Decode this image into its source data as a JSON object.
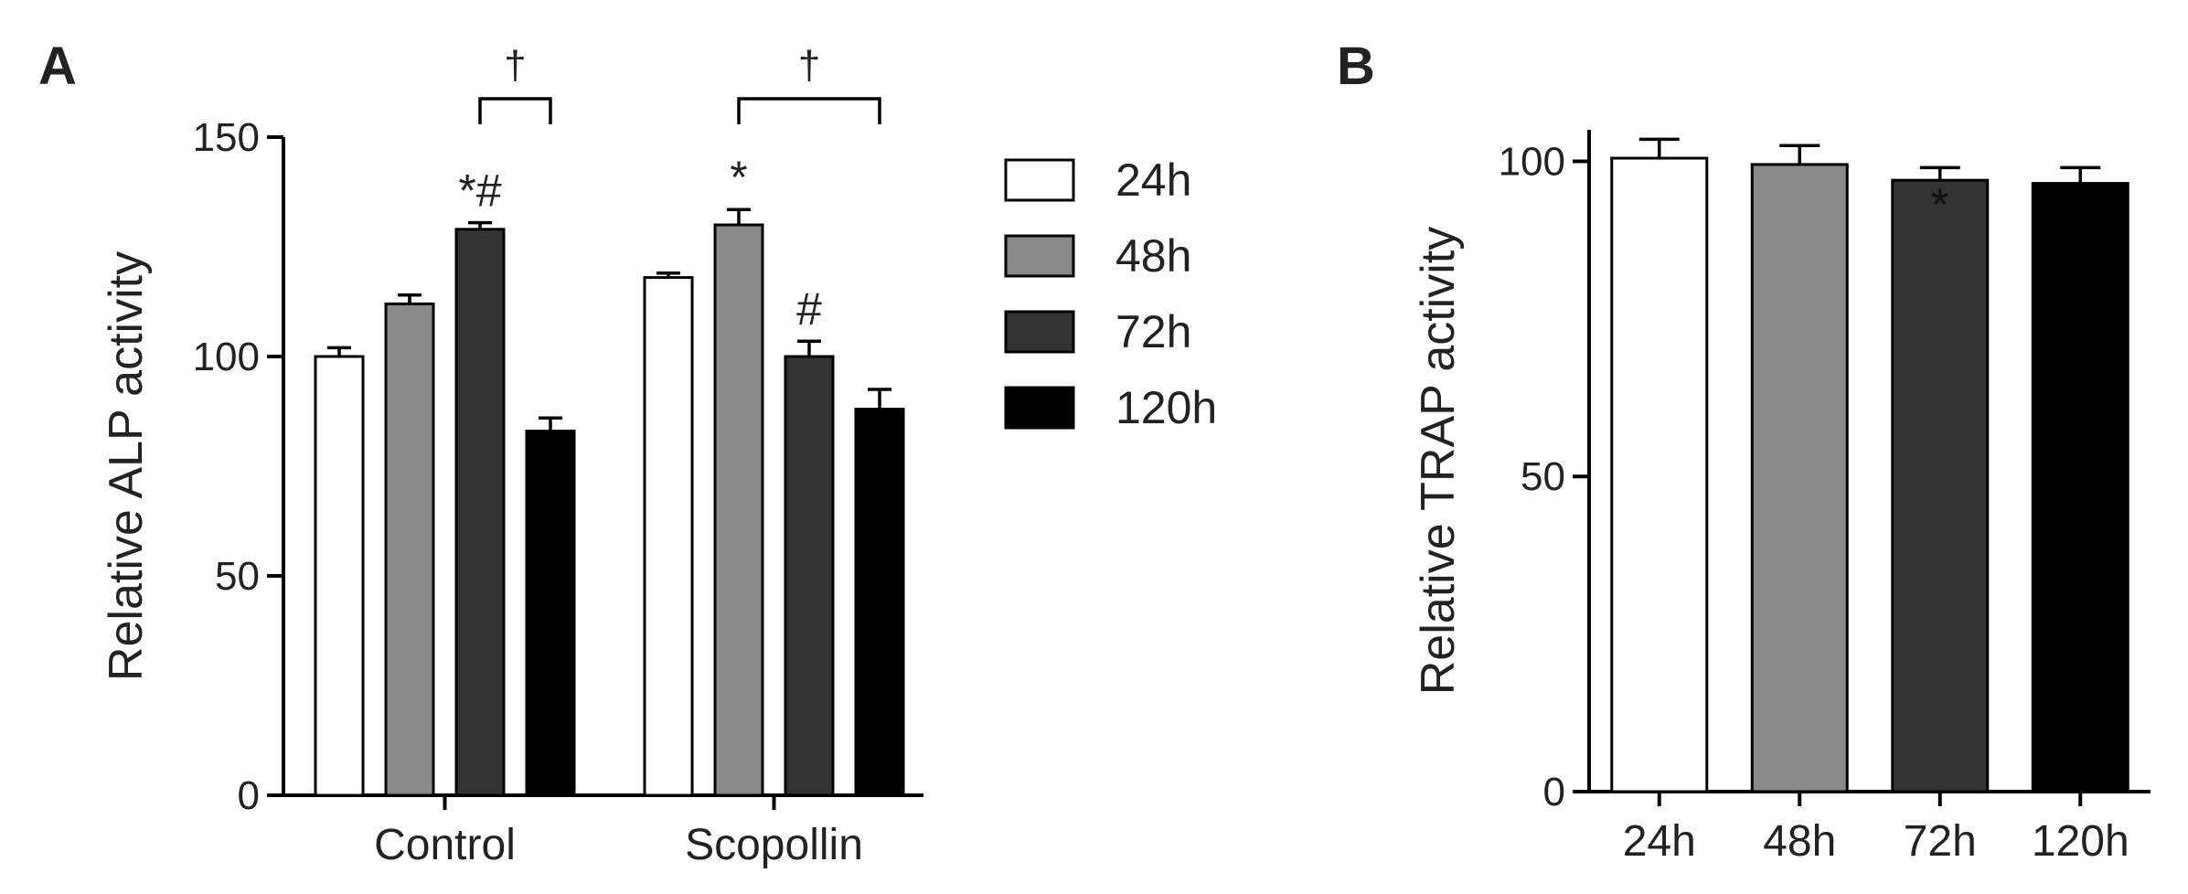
{
  "panels": {
    "a_letter": "A",
    "b_letter": "B"
  },
  "colors": {
    "24h": "#ffffff",
    "48h": "#888888",
    "72h": "#333333",
    "120h": "#000000",
    "stroke": "#000000"
  },
  "chart_data": [
    {
      "type": "bar",
      "panel": "A",
      "categories": [
        "Control",
        "Scopollin"
      ],
      "ylabel": "Relative ALP activity",
      "ylim": [
        0,
        150
      ],
      "yticks": [
        0,
        50,
        100,
        150
      ],
      "legend_position": "right",
      "series": [
        {
          "name": "24h",
          "values": [
            100,
            118
          ],
          "errors": [
            2,
            1
          ]
        },
        {
          "name": "48h",
          "values": [
            112,
            130
          ],
          "errors": [
            2,
            3.5
          ]
        },
        {
          "name": "72h",
          "values": [
            129,
            100
          ],
          "errors": [
            1.5,
            3.5
          ]
        },
        {
          "name": "120h",
          "values": [
            83,
            88
          ],
          "errors": [
            3,
            4.5
          ]
        }
      ],
      "annotations": [
        {
          "category": "Control",
          "series": "72h",
          "text": "*#"
        },
        {
          "category": "Scopollin",
          "series": "48h",
          "text": "*"
        },
        {
          "category": "Scopollin",
          "series": "72h",
          "text": "#"
        }
      ],
      "brackets": [
        {
          "category": "Control",
          "from_series": "72h",
          "to_series": "120h",
          "text": "†"
        },
        {
          "category": "Scopollin",
          "from_series": "48h",
          "to_series": "120h",
          "text": "†"
        }
      ]
    },
    {
      "type": "bar",
      "panel": "B",
      "categories": [
        "24h",
        "48h",
        "72h",
        "120h"
      ],
      "ylabel": "Relative TRAP activity",
      "ylim": [
        0,
        105
      ],
      "yticks": [
        0,
        50,
        100
      ],
      "values": [
        100.5,
        99.5,
        97,
        96.5
      ],
      "errors": [
        3,
        3,
        2,
        2.5
      ],
      "annotations": [
        {
          "category": "72h",
          "text": "*"
        }
      ]
    }
  ]
}
